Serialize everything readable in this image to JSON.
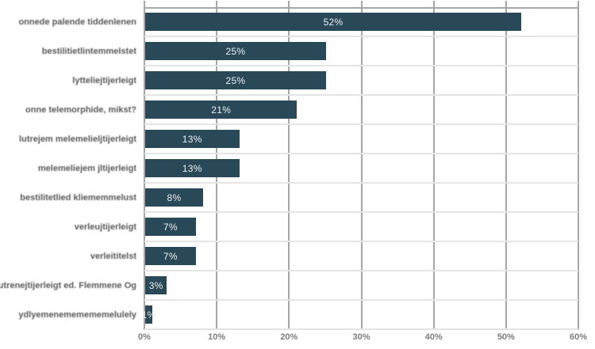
{
  "chart_data": {
    "type": "bar",
    "orientation": "horizontal",
    "title": "",
    "xlabel": "",
    "ylabel": "",
    "legend": "none",
    "grid": "both",
    "xlim": [
      0,
      60
    ],
    "x_ticks": [
      "0%",
      "10%",
      "20%",
      "30%",
      "40%",
      "50%",
      "60%"
    ],
    "categories": [
      "onnede palende tiddenlenen",
      "bestilitietlintemmelstet",
      "lytteliejtijerleigt",
      "onne telemorphide, mikst?",
      "lutrejem melemelieljtijerleigt",
      "melemeliejem jltijerleigt",
      "bestilitetlied kliememmelust",
      "verleujtijerleigt",
      "verleititelst",
      "lutrenejtijerleigt ed. Flemmene Og",
      "ydlyemenememememelulely"
    ],
    "values": [
      52,
      25,
      25,
      21,
      13,
      13,
      8,
      7,
      7,
      3,
      1
    ],
    "value_labels": [
      "52%",
      "25%",
      "25%",
      "21%",
      "13%",
      "13%",
      "8%",
      "7%",
      "7%",
      "3%",
      "1%"
    ],
    "colors": {
      "bar": "#294958",
      "value_label": "#eef1f2",
      "category_label": "#595959",
      "tick_label": "#7d7d7d",
      "grid_vertical": "#a6a6a6",
      "grid_horizontal": "#e4e4e4",
      "background": "#ffffff"
    }
  }
}
